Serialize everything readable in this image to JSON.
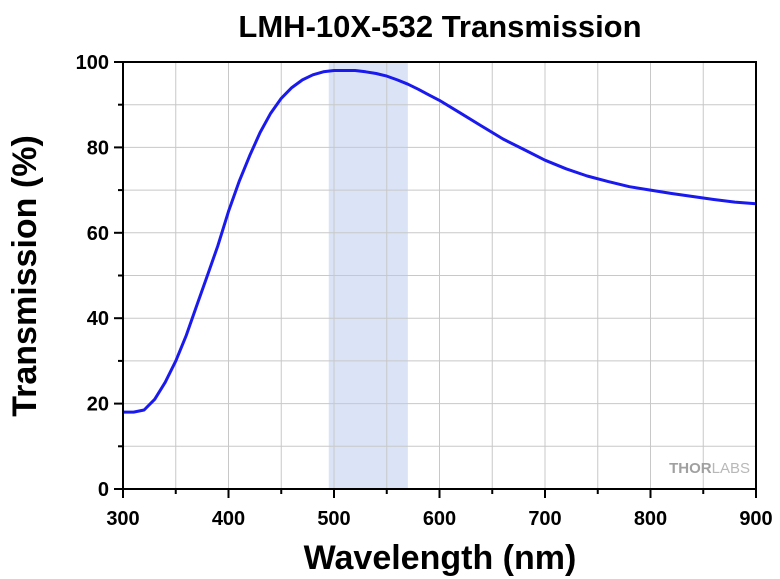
{
  "chart_data": {
    "type": "line",
    "title": "LMH-10X-532 Transmission",
    "xlabel": "Wavelength (nm)",
    "ylabel": "Transmission (%)",
    "xlim": [
      300,
      900
    ],
    "ylim": [
      0,
      100
    ],
    "xticks": [
      300,
      400,
      500,
      600,
      700,
      800,
      900
    ],
    "yticks": [
      0,
      20,
      40,
      60,
      80,
      100
    ],
    "x_minor_step": 50,
    "y_minor_step": 10,
    "grid": true,
    "highlight_band": {
      "x_range": [
        495,
        570
      ],
      "color": "#dbe4f6"
    },
    "series": [
      {
        "name": "Transmission",
        "color": "#1a1aee",
        "x": [
          300,
          310,
          320,
          330,
          340,
          350,
          360,
          370,
          380,
          390,
          400,
          410,
          420,
          430,
          440,
          450,
          460,
          470,
          480,
          490,
          500,
          510,
          520,
          530,
          540,
          550,
          560,
          570,
          580,
          590,
          600,
          620,
          640,
          660,
          680,
          700,
          720,
          740,
          760,
          780,
          800,
          820,
          840,
          860,
          880,
          900
        ],
        "y": [
          18,
          18,
          18.5,
          21,
          25,
          30,
          36,
          43,
          50,
          57,
          65,
          72,
          78,
          83.5,
          88,
          91.5,
          94,
          95.8,
          97,
          97.7,
          98,
          98,
          98,
          97.7,
          97.3,
          96.7,
          95.8,
          94.8,
          93.6,
          92.3,
          91,
          88,
          85,
          82,
          79.5,
          77,
          75,
          73.3,
          72,
          70.8,
          70,
          69.2,
          68.5,
          67.8,
          67.2,
          66.8
        ]
      }
    ]
  },
  "watermark": {
    "part1": "THOR",
    "part2": "LABS"
  }
}
